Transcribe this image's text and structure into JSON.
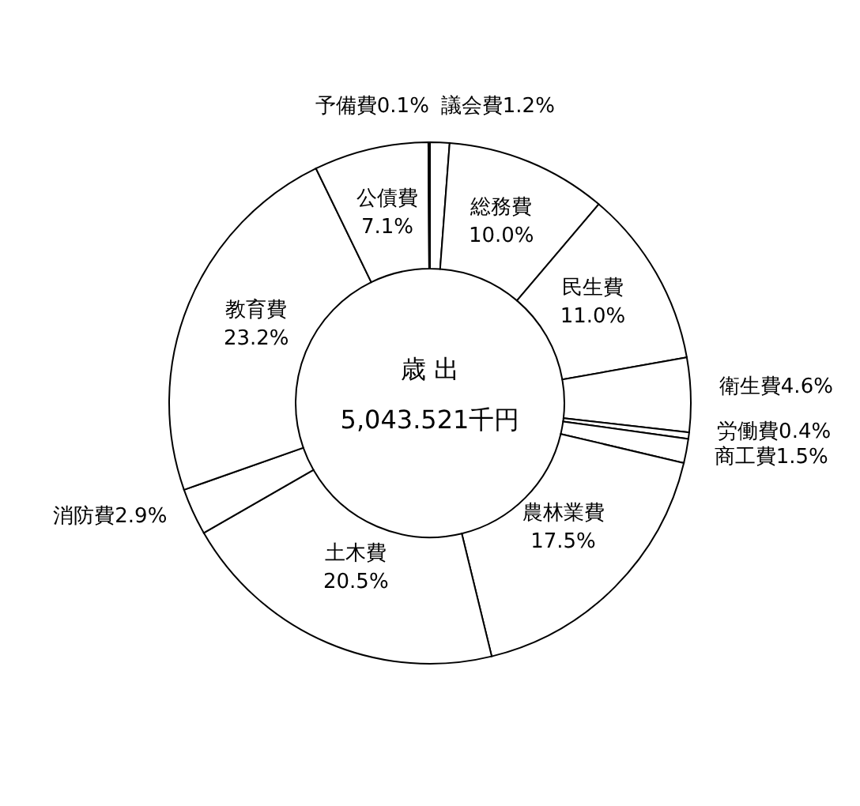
{
  "chart_data": {
    "type": "donut",
    "categories": [
      "議会費",
      "総務費",
      "民生費",
      "衛生費",
      "労働費",
      "商工費",
      "農林業費",
      "土木費",
      "消防費",
      "教育費",
      "公債費",
      "予備費"
    ],
    "values": [
      1.2,
      10.0,
      11.0,
      4.6,
      0.4,
      1.5,
      17.5,
      20.5,
      2.9,
      23.2,
      7.1,
      0.1
    ],
    "colors": [
      "#ffffff",
      "#ffffff",
      "#ffffff",
      "#ffffff",
      "#ffffff",
      "#ffffff",
      "#ffffff",
      "#ffffff",
      "#ffffff",
      "#ffffff",
      "#ffffff",
      "#ffffff"
    ],
    "value_labels": [
      "1.2%",
      "10.0%",
      "11.0%",
      "4.6%",
      "0.4%",
      "1.5%",
      "17.5%",
      "20.5%",
      "2.9%",
      "23.2%",
      "7.1%",
      "0.1%"
    ],
    "annotations": [
      "歳 出",
      "5,043.521千円"
    ]
  }
}
